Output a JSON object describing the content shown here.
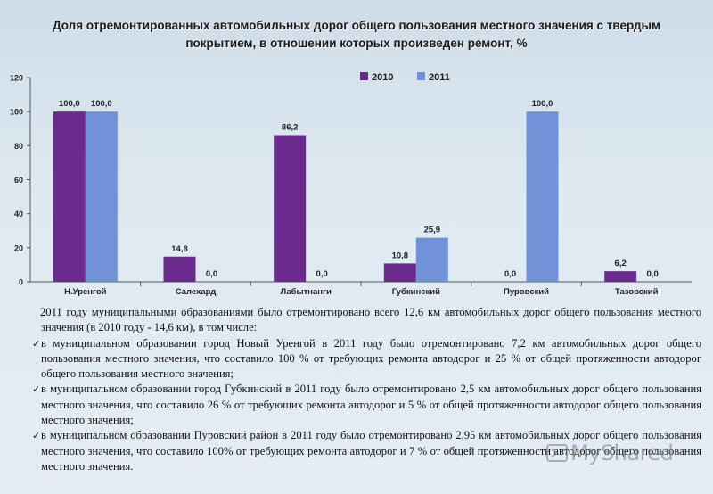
{
  "chart_data": {
    "type": "bar",
    "title": "Доля отремонтированных автомобильных дорог общего пользования местного значения с твердым покрытием, в отношении которых произведен ремонт, %",
    "categories": [
      "Н.Уренгой",
      "Салехард",
      "Лабытнанги",
      "Губкинский",
      "Пуровский",
      "Тазовский"
    ],
    "series": [
      {
        "name": "2010",
        "values": [
          100.0,
          14.8,
          86.2,
          10.8,
          0.0,
          6.2
        ],
        "labels": [
          "100,0",
          "14,8",
          "86,2",
          "10,8",
          "0,0",
          "6,2"
        ],
        "color": "#6a2a8e"
      },
      {
        "name": "2011",
        "values": [
          100.0,
          0.0,
          0.0,
          25.9,
          100.0,
          0.0
        ],
        "labels": [
          "100,0",
          "0,0",
          "0,0",
          "25,9",
          "100,0",
          "0,0"
        ],
        "color": "#6f92d8"
      }
    ],
    "ylim": [
      0,
      120
    ],
    "yticks": [
      0,
      20,
      40,
      60,
      80,
      100,
      120
    ],
    "legend": "top-center",
    "grid": false
  },
  "text": {
    "intro": "2011 году муниципальными образованиями было отремонтировано всего  12,6 км автомобильных дорог общего пользования местного значения (в 2010 году - 14,6 км), в том числе:",
    "bullets": [
      "в муниципальном образовании город Новый Уренгой в 2011 году было отремонтировано 7,2 км автомобильных дорог общего пользования местного значения, что составило 100 % от требующих ремонта автодорог и 25 % от общей протяженности автодорог общего пользования местного значения;",
      "в муниципальном образовании город Губкинский в 2011 году было отремонтировано 2,5 км автомобильных дорог общего пользования местного значения, что составило 26 % от требующих ремонта автодорог и 5 % от общей протяженности автодорог общего пользования местного значения;",
      "в муниципальном образовании Пуровский район в 2011 году было отремонтировано 2,95 км автомобильных дорог общего пользования местного значения, что составило 100% от требующих ремонта автодорог и 7 % от общей протяженности автодорог общего пользования местного значения."
    ],
    "bullet_icon": "checkmark-icon"
  },
  "watermark": "MyShared"
}
